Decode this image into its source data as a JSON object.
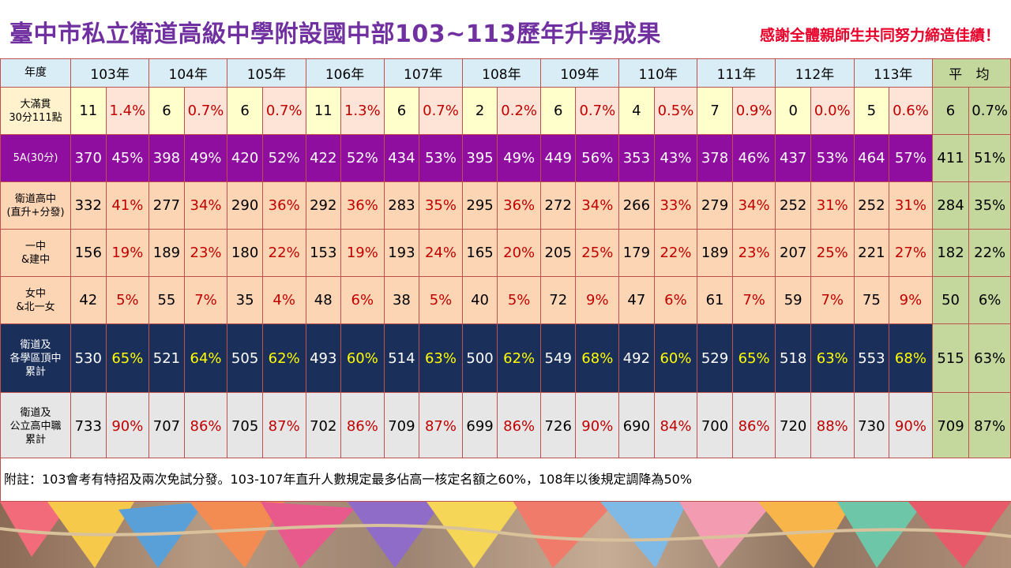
{
  "title": "臺中市私立衛道高級中學附設國中部103~113歷年升學成果",
  "thanks": "感謝全體親師生共同努力締造佳績！",
  "header": {
    "label": "年度",
    "years": [
      "103年",
      "104年",
      "105年",
      "106年",
      "107年",
      "108年",
      "109年",
      "110年",
      "111年",
      "112年",
      "113年"
    ],
    "avg": "平 均"
  },
  "rows": [
    {
      "label_lines": [
        "大滿貫",
        "30分111點"
      ],
      "cells": [
        [
          "11",
          "1.4%"
        ],
        [
          "6",
          "0.7%"
        ],
        [
          "6",
          "0.7%"
        ],
        [
          "11",
          "1.3%"
        ],
        [
          "6",
          "0.7%"
        ],
        [
          "2",
          "0.2%"
        ],
        [
          "6",
          "0.7%"
        ],
        [
          "4",
          "0.5%"
        ],
        [
          "7",
          "0.9%"
        ],
        [
          "0",
          "0.0%"
        ],
        [
          "5",
          "0.6%"
        ]
      ],
      "avg": [
        "6",
        "0.7%"
      ]
    },
    {
      "label_lines": [
        "5A(30分)"
      ],
      "cells": [
        [
          "370",
          "45%"
        ],
        [
          "398",
          "49%"
        ],
        [
          "420",
          "52%"
        ],
        [
          "422",
          "52%"
        ],
        [
          "434",
          "53%"
        ],
        [
          "395",
          "49%"
        ],
        [
          "449",
          "56%"
        ],
        [
          "353",
          "43%"
        ],
        [
          "378",
          "46%"
        ],
        [
          "437",
          "53%"
        ],
        [
          "464",
          "57%"
        ]
      ],
      "avg": [
        "411",
        "51%"
      ]
    },
    {
      "label_lines": [
        "衛道高中",
        "(直升+分發)"
      ],
      "cells": [
        [
          "332",
          "41%"
        ],
        [
          "277",
          "34%"
        ],
        [
          "290",
          "36%"
        ],
        [
          "292",
          "36%"
        ],
        [
          "283",
          "35%"
        ],
        [
          "295",
          "36%"
        ],
        [
          "272",
          "34%"
        ],
        [
          "266",
          "33%"
        ],
        [
          "279",
          "34%"
        ],
        [
          "252",
          "31%"
        ],
        [
          "252",
          "31%"
        ]
      ],
      "avg": [
        "284",
        "35%"
      ]
    },
    {
      "label_lines": [
        "一中",
        "&建中"
      ],
      "cells": [
        [
          "156",
          "19%"
        ],
        [
          "189",
          "23%"
        ],
        [
          "180",
          "22%"
        ],
        [
          "153",
          "19%"
        ],
        [
          "193",
          "24%"
        ],
        [
          "165",
          "20%"
        ],
        [
          "205",
          "25%"
        ],
        [
          "179",
          "22%"
        ],
        [
          "189",
          "23%"
        ],
        [
          "207",
          "25%"
        ],
        [
          "221",
          "27%"
        ]
      ],
      "avg": [
        "182",
        "22%"
      ]
    },
    {
      "label_lines": [
        "女中",
        "&北一女"
      ],
      "cells": [
        [
          "42",
          "5%"
        ],
        [
          "55",
          "7%"
        ],
        [
          "35",
          "4%"
        ],
        [
          "48",
          "6%"
        ],
        [
          "38",
          "5%"
        ],
        [
          "40",
          "5%"
        ],
        [
          "72",
          "9%"
        ],
        [
          "47",
          "6%"
        ],
        [
          "61",
          "7%"
        ],
        [
          "59",
          "7%"
        ],
        [
          "75",
          "9%"
        ]
      ],
      "avg": [
        "50",
        "6%"
      ]
    },
    {
      "label_lines": [
        "衛道及",
        "各學區頂中",
        "累計"
      ],
      "cells": [
        [
          "530",
          "65%"
        ],
        [
          "521",
          "64%"
        ],
        [
          "505",
          "62%"
        ],
        [
          "493",
          "60%"
        ],
        [
          "514",
          "63%"
        ],
        [
          "500",
          "62%"
        ],
        [
          "549",
          "68%"
        ],
        [
          "492",
          "60%"
        ],
        [
          "529",
          "65%"
        ],
        [
          "518",
          "63%"
        ],
        [
          "553",
          "68%"
        ]
      ],
      "avg": [
        "515",
        "63%"
      ]
    },
    {
      "label_lines": [
        "衛道及",
        "公立高中職",
        "累計"
      ],
      "cells": [
        [
          "733",
          "90%"
        ],
        [
          "707",
          "86%"
        ],
        [
          "705",
          "87%"
        ],
        [
          "702",
          "86%"
        ],
        [
          "709",
          "87%"
        ],
        [
          "699",
          "86%"
        ],
        [
          "726",
          "90%"
        ],
        [
          "690",
          "84%"
        ],
        [
          "700",
          "86%"
        ],
        [
          "720",
          "88%"
        ],
        [
          "730",
          "90%"
        ]
      ],
      "avg": [
        "709",
        "87%"
      ]
    }
  ],
  "note": "附註：103會考有特招及兩次免試分發。103-107年直升人數規定最多佔高一核定名額之60%，108年以後規定調降為50%"
}
